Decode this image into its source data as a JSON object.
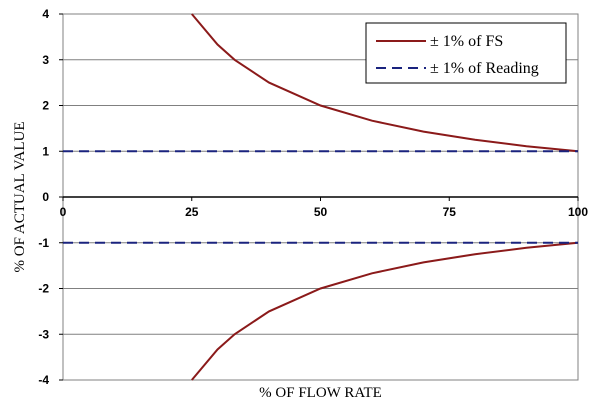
{
  "chart_data": {
    "type": "line",
    "title": "",
    "xlabel": "% OF FLOW RATE",
    "ylabel": "% OF ACTUAL VALUE",
    "xlim": [
      0,
      100
    ],
    "ylim": [
      -4,
      4
    ],
    "x_ticks": [
      "0",
      "25",
      "50",
      "75",
      "100"
    ],
    "y_ticks": [
      "4",
      "3",
      "2",
      "1",
      "0",
      "-1",
      "-2",
      "-3",
      "-4"
    ],
    "grid": true,
    "legend_position": "top-right",
    "colors": {
      "fs": "#8b1a1a",
      "reading": "#1a237e",
      "grid": "#808080",
      "plot_border": "#808080"
    },
    "series": [
      {
        "name": "± 1% of FS",
        "style": "solid",
        "x": [
          25,
          30,
          33.33,
          40,
          50,
          60,
          70,
          80,
          90,
          100
        ],
        "y": [
          4,
          3.333,
          3,
          2.5,
          2,
          1.667,
          1.429,
          1.25,
          1.111,
          1
        ],
        "mirror": {
          "x": [
            25,
            30,
            33.33,
            40,
            50,
            60,
            70,
            80,
            90,
            100
          ],
          "y": [
            -4,
            -3.333,
            -3,
            -2.5,
            -2,
            -1.667,
            -1.429,
            -1.25,
            -1.111,
            -1
          ]
        }
      },
      {
        "name": "± 1% of Reading",
        "style": "dashed",
        "x": [
          0,
          100
        ],
        "y": [
          1,
          1
        ],
        "mirror": {
          "x": [
            0,
            100
          ],
          "y": [
            -1,
            -1
          ]
        }
      }
    ]
  }
}
